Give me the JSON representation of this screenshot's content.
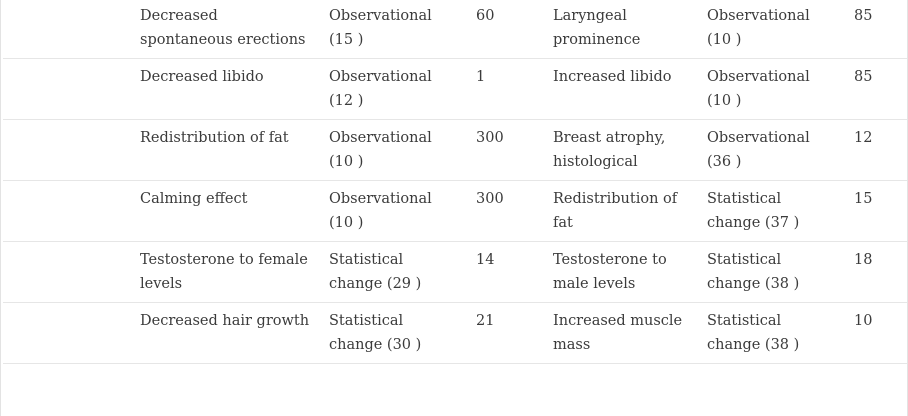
{
  "table": {
    "rows": [
      {
        "feminizing_effect": "Decreased spontaneous erections",
        "feminizing_type": "Observational (15 )",
        "feminizing_value": "60",
        "masculinizing_effect": "Laryngeal prominence",
        "masculinizing_type": "Observational (10 )",
        "masculinizing_value": "85"
      },
      {
        "feminizing_effect": "Decreased libido",
        "feminizing_type": "Observational (12 )",
        "feminizing_value": "1",
        "masculinizing_effect": "Increased libido",
        "masculinizing_type": "Observational (10 )",
        "masculinizing_value": "85"
      },
      {
        "feminizing_effect": "Redistribution of fat",
        "feminizing_type": "Observational (10 )",
        "feminizing_value": "300",
        "masculinizing_effect": "Breast atrophy, histological",
        "masculinizing_type": "Observational (36 )",
        "masculinizing_value": "12"
      },
      {
        "feminizing_effect": "Calming effect",
        "feminizing_type": "Observational (10 )",
        "feminizing_value": "300",
        "masculinizing_effect": "Redistribution of fat",
        "masculinizing_type": "Statistical change (37 )",
        "masculinizing_value": "15"
      },
      {
        "feminizing_effect": "Testosterone to female levels",
        "feminizing_type": "Statistical change (29 )",
        "feminizing_value": "14",
        "masculinizing_effect": "Testosterone to male levels",
        "masculinizing_type": "Statistical change (38 )",
        "masculinizing_value": "18"
      },
      {
        "feminizing_effect": "Decreased hair growth",
        "feminizing_type": "Statistical change (30 )",
        "feminizing_value": "21",
        "masculinizing_effect": "Increased muscle mass",
        "masculinizing_type": "Statistical change (38 )",
        "masculinizing_value": "10"
      }
    ]
  }
}
